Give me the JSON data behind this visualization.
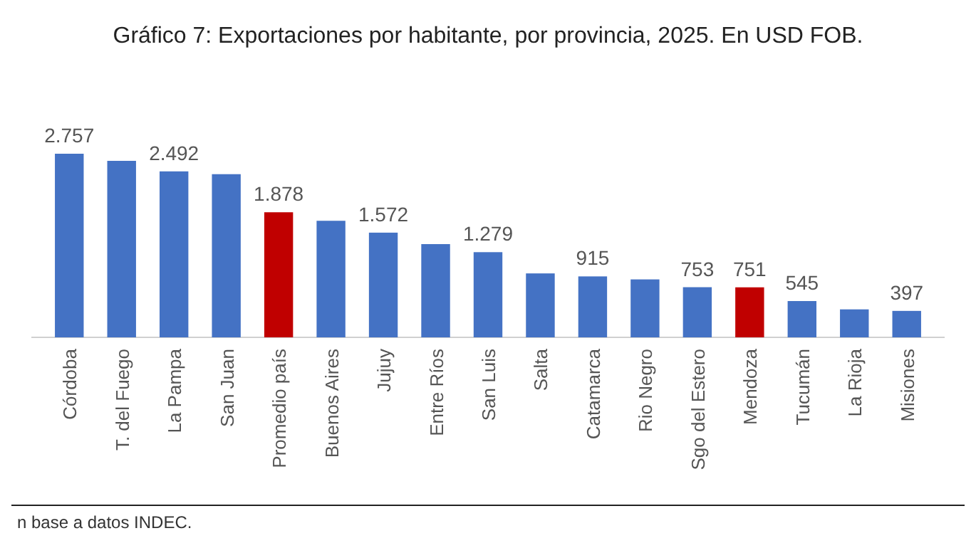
{
  "chart_data": {
    "type": "bar",
    "title": "Gráfico 7: Exportaciones por habitante, por provincia, 2025. En USD FOB.",
    "categories": [
      "Córdoba",
      "T. del Fuego",
      "La Pampa",
      "San Juan",
      "Promedio país",
      "Buenos Aires",
      "Jujuy",
      "Entre Ríos",
      "San Luis",
      "Salta",
      "Catamarca",
      "Rio Negro",
      "Sgo del Estero",
      "Mendoza",
      "Tucumán",
      "La Rioja",
      "Misiones"
    ],
    "values": [
      2757,
      2650,
      2492,
      2450,
      1878,
      1750,
      1572,
      1400,
      1279,
      960,
      915,
      870,
      753,
      751,
      545,
      420,
      397
    ],
    "value_labels": [
      "2.757",
      null,
      "2.492",
      null,
      "1.878",
      null,
      "1.572",
      null,
      "1.279",
      null,
      "915",
      null,
      "753",
      "751",
      "545",
      null,
      "397"
    ],
    "colors": [
      "#4472c4",
      "#4472c4",
      "#4472c4",
      "#4472c4",
      "#c00000",
      "#4472c4",
      "#4472c4",
      "#4472c4",
      "#4472c4",
      "#4472c4",
      "#4472c4",
      "#4472c4",
      "#4472c4",
      "#c00000",
      "#4472c4",
      "#4472c4",
      "#4472c4"
    ],
    "annotations": [
      "n base a datos INDEC."
    ]
  }
}
